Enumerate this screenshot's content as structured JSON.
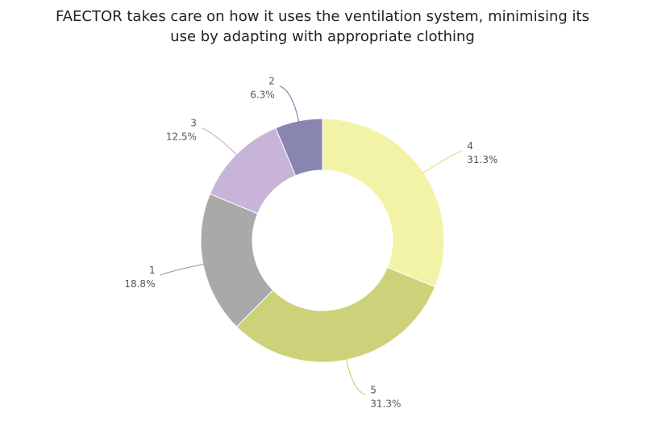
{
  "chart_data": {
    "type": "pie",
    "variant": "donut",
    "title_lines": [
      "FAECTOR takes care on how it uses the ventilation system, minimising its",
      "use by adapting with appropriate clothing"
    ],
    "slices": [
      {
        "label": "4",
        "pct_label": "31.3%",
        "value": 31.3,
        "color": "#f2f3a7"
      },
      {
        "label": "5",
        "pct_label": "31.3%",
        "value": 31.3,
        "color": "#cdd27a"
      },
      {
        "label": "1",
        "pct_label": "18.8%",
        "value": 18.8,
        "color": "#a9a9a9"
      },
      {
        "label": "3",
        "pct_label": "12.5%",
        "value": 12.5,
        "color": "#c8b4d8"
      },
      {
        "label": "2",
        "pct_label": "6.3%",
        "value": 6.3,
        "color": "#8885b0"
      }
    ],
    "legend": "none"
  }
}
